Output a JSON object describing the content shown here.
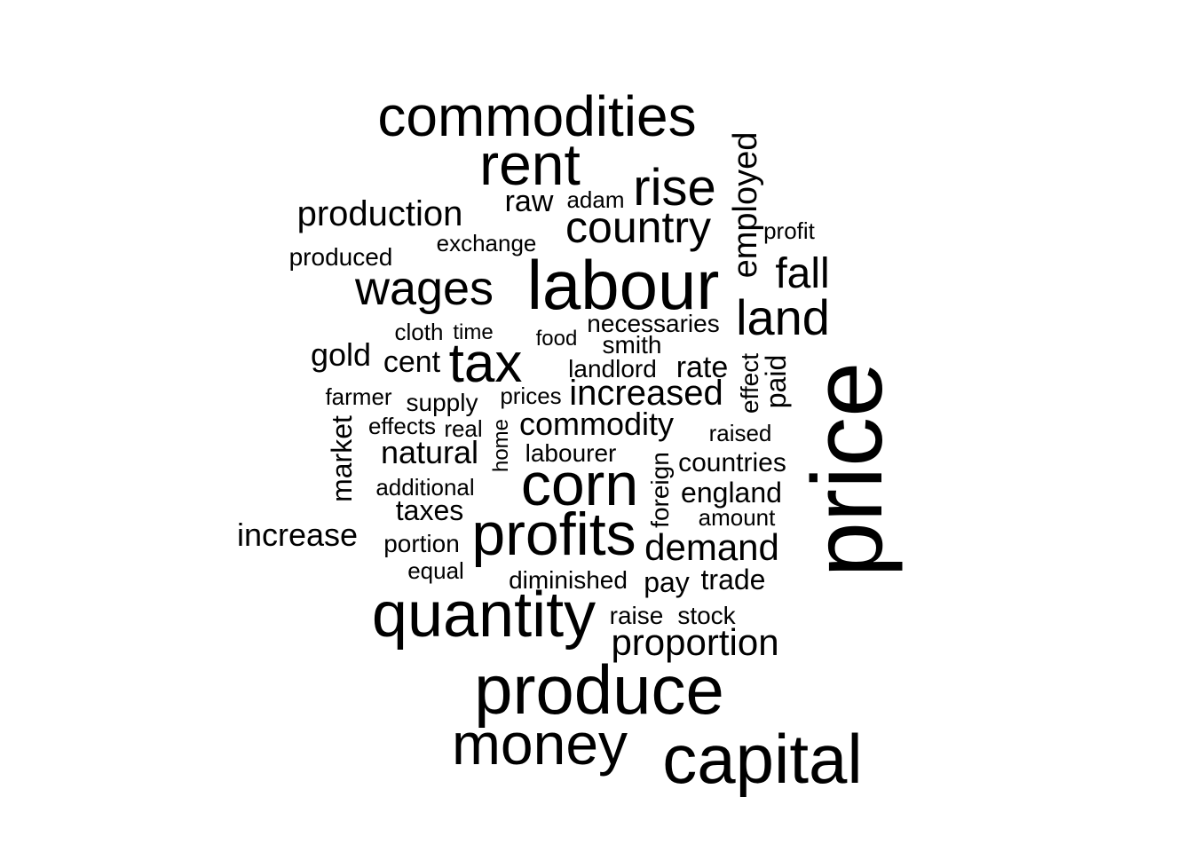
{
  "cloud": {
    "text_color": "#000000",
    "background": "#ffffff",
    "words": {
      "commodities": "commodities",
      "rent": "rent",
      "rise": "rise",
      "employed": "employed",
      "raw": "raw",
      "adam": "adam",
      "production": "production",
      "country": "country",
      "profit": "profit",
      "exchange": "exchange",
      "produced": "produced",
      "fall": "fall",
      "labour": "labour",
      "wages": "wages",
      "land": "land",
      "necessaries": "necessaries",
      "cloth": "cloth",
      "time": "time",
      "food": "food",
      "smith": "smith",
      "gold": "gold",
      "cent": "cent",
      "tax": "tax",
      "landlord": "landlord",
      "rate": "rate",
      "effect": "effect",
      "paid": "paid",
      "price": "price",
      "farmer": "farmer",
      "supply": "supply",
      "prices": "prices",
      "increased": "increased",
      "market": "market",
      "effects": "effects",
      "real": "real",
      "home": "home",
      "commodity": "commodity",
      "raised": "raised",
      "natural": "natural",
      "labourer": "labourer",
      "countries": "countries",
      "corn": "corn",
      "foreign": "foreign",
      "additional": "additional",
      "england": "england",
      "taxes": "taxes",
      "amount": "amount",
      "increase": "increase",
      "profits": "profits",
      "portion": "portion",
      "demand": "demand",
      "equal": "equal",
      "diminished": "diminished",
      "pay": "pay",
      "trade": "trade",
      "quantity": "quantity",
      "raise": "raise",
      "stock": "stock",
      "proportion": "proportion",
      "produce": "produce",
      "money": "money",
      "capital": "capital"
    }
  }
}
